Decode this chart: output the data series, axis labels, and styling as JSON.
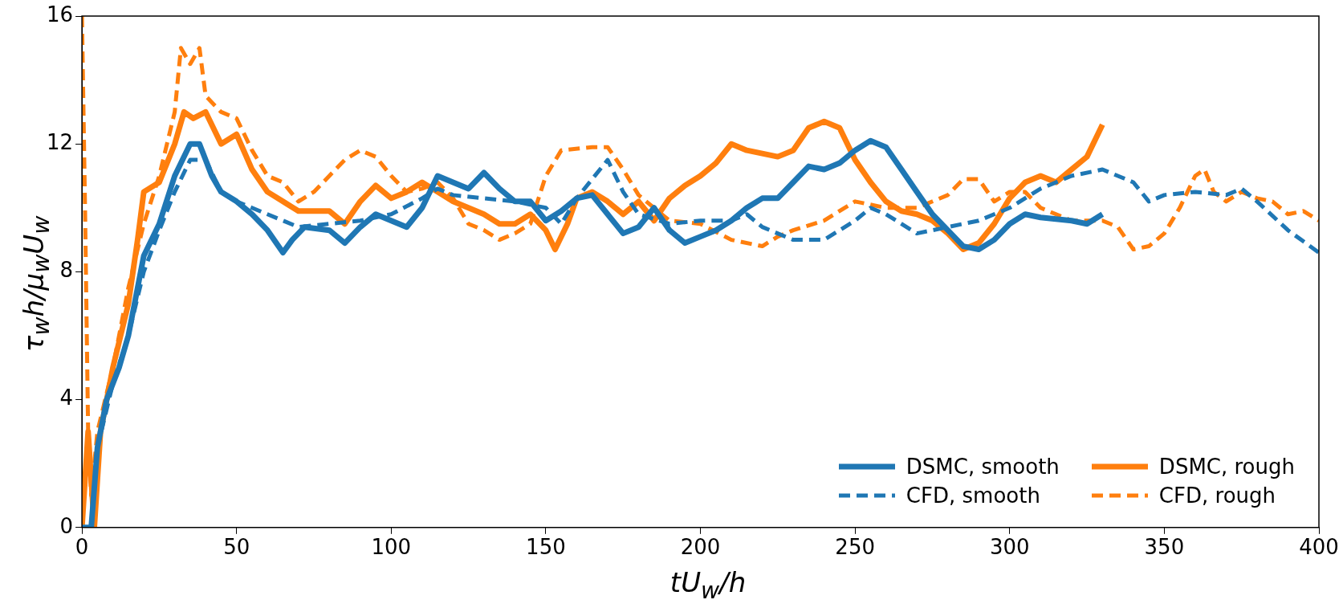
{
  "chart_data": {
    "type": "line",
    "xlabel": "tU$_{w}$/h",
    "ylabel": "τ$_{w}$h/μ$_{w}$U$_{w}$",
    "xlim": [
      0,
      400
    ],
    "xticks": [
      0,
      50,
      100,
      150,
      200,
      250,
      300,
      350,
      400
    ],
    "ylim": [
      0,
      16
    ],
    "yticks": [
      0,
      4,
      8,
      12,
      16
    ],
    "legend": "bottom right",
    "series": [
      {
        "name": "DSMC, smooth",
        "color": "#1f77b4",
        "line_style": "solid",
        "x": [
          0,
          3,
          5,
          8,
          12,
          15,
          18,
          20,
          25,
          30,
          35,
          38,
          42,
          45,
          50,
          55,
          60,
          65,
          68,
          72,
          80,
          85,
          90,
          95,
          100,
          105,
          110,
          115,
          120,
          125,
          130,
          135,
          140,
          145,
          150,
          155,
          160,
          165,
          170,
          175,
          180,
          185,
          190,
          195,
          200,
          205,
          210,
          215,
          220,
          225,
          230,
          235,
          240,
          245,
          250,
          255,
          260,
          265,
          270,
          275,
          280,
          285,
          290,
          295,
          300,
          305,
          310,
          320,
          325,
          330
        ],
        "values": [
          0,
          0,
          2.5,
          4,
          5,
          6,
          7.5,
          8.5,
          9.5,
          11,
          12,
          12,
          11,
          10.5,
          10.2,
          9.8,
          9.3,
          8.6,
          9,
          9.4,
          9.3,
          8.9,
          9.4,
          9.8,
          9.6,
          9.4,
          10,
          11,
          10.8,
          10.6,
          11.1,
          10.6,
          10.2,
          10.2,
          9.6,
          9.9,
          10.3,
          10.4,
          9.8,
          9.2,
          9.4,
          10,
          9.3,
          8.9,
          9.1,
          9.3,
          9.6,
          10,
          10.3,
          10.3,
          10.8,
          11.3,
          11.2,
          11.4,
          11.8,
          12.1,
          11.9,
          11.2,
          10.5,
          9.8,
          9.3,
          8.8,
          8.7,
          9,
          9.5,
          9.8,
          9.7,
          9.6,
          9.5,
          9.8
        ]
      },
      {
        "name": "CFD, smooth",
        "color": "#1f77b4",
        "line_style": "dashed",
        "x": [
          0,
          3,
          5,
          10,
          15,
          20,
          25,
          30,
          35,
          40,
          45,
          50,
          55,
          60,
          65,
          70,
          80,
          90,
          100,
          110,
          115,
          120,
          130,
          140,
          150,
          155,
          160,
          165,
          170,
          175,
          180,
          190,
          200,
          210,
          215,
          220,
          230,
          240,
          250,
          255,
          260,
          270,
          280,
          290,
          300,
          310,
          320,
          330,
          340,
          345,
          350,
          360,
          370,
          375,
          380,
          390,
          400
        ],
        "values": [
          0,
          0,
          2.5,
          4.5,
          6,
          8,
          9.3,
          10.5,
          11.5,
          11.5,
          10.5,
          10.2,
          10,
          9.8,
          9.6,
          9.4,
          9.5,
          9.6,
          9.8,
          10.3,
          10.6,
          10.4,
          10.3,
          10.2,
          10,
          9.5,
          10.3,
          10.9,
          11.5,
          10.5,
          9.8,
          9.5,
          9.6,
          9.6,
          9.8,
          9.4,
          9,
          9,
          9.6,
          10,
          9.8,
          9.2,
          9.4,
          9.6,
          10,
          10.6,
          11,
          11.2,
          10.8,
          10.2,
          10.4,
          10.5,
          10.4,
          10.6,
          10.2,
          9.3,
          8.6
        ]
      },
      {
        "name": "DSMC, rough",
        "color": "#ff7f0e",
        "line_style": "solid",
        "x": [
          0,
          2,
          4,
          6,
          10,
          15,
          18,
          20,
          25,
          30,
          33,
          36,
          40,
          45,
          50,
          55,
          60,
          65,
          70,
          80,
          85,
          90,
          95,
          100,
          105,
          110,
          115,
          120,
          125,
          130,
          135,
          140,
          145,
          150,
          153,
          157,
          160,
          165,
          170,
          175,
          180,
          185,
          190,
          195,
          200,
          205,
          210,
          215,
          220,
          225,
          230,
          235,
          240,
          245,
          250,
          255,
          260,
          265,
          270,
          275,
          280,
          285,
          290,
          295,
          300,
          305,
          310,
          315,
          320,
          325,
          330
        ],
        "values": [
          0,
          3,
          0,
          3,
          5,
          7,
          9,
          10.5,
          10.8,
          12,
          13,
          12.8,
          13,
          12,
          12.3,
          11.2,
          10.5,
          10.2,
          9.9,
          9.9,
          9.5,
          10.2,
          10.7,
          10.3,
          10.5,
          10.8,
          10.5,
          10.2,
          10,
          9.8,
          9.5,
          9.5,
          9.8,
          9.3,
          8.7,
          9.5,
          10.3,
          10.5,
          10.2,
          9.8,
          10.2,
          9.6,
          10.3,
          10.7,
          11,
          11.4,
          12,
          11.8,
          11.7,
          11.6,
          11.8,
          12.5,
          12.7,
          12.5,
          11.5,
          10.8,
          10.2,
          9.9,
          9.8,
          9.6,
          9.2,
          8.7,
          8.9,
          9.5,
          10.3,
          10.8,
          11,
          10.8,
          11.2,
          11.6,
          12.6
        ]
      },
      {
        "name": "CFD, rough",
        "color": "#ff7f0e",
        "line_style": "dashed",
        "x": [
          0,
          1,
          2,
          3,
          5,
          10,
          15,
          20,
          25,
          30,
          32,
          35,
          38,
          40,
          45,
          50,
          55,
          60,
          65,
          70,
          75,
          80,
          85,
          90,
          95,
          100,
          105,
          110,
          115,
          120,
          125,
          130,
          135,
          140,
          145,
          150,
          155,
          165,
          170,
          175,
          180,
          185,
          190,
          200,
          210,
          220,
          225,
          230,
          240,
          250,
          260,
          270,
          280,
          285,
          290,
          295,
          300,
          305,
          310,
          320,
          330,
          335,
          340,
          345,
          350,
          355,
          360,
          363,
          366,
          370,
          375,
          380,
          385,
          390,
          395,
          400
        ],
        "values": [
          16,
          10,
          3,
          1,
          3,
          5,
          7.5,
          9.5,
          11,
          13,
          15,
          14.5,
          15,
          13.5,
          13,
          12.8,
          11.8,
          11,
          10.8,
          10.2,
          10.5,
          11,
          11.5,
          11.8,
          11.6,
          11,
          10.5,
          10.6,
          10.8,
          10.3,
          9.5,
          9.3,
          9,
          9.2,
          9.5,
          11,
          11.8,
          11.9,
          11.9,
          11.2,
          10.4,
          10,
          9.6,
          9.5,
          9,
          8.8,
          9.1,
          9.3,
          9.6,
          10.2,
          10,
          10,
          10.4,
          10.9,
          10.9,
          10.2,
          10.5,
          10.5,
          10,
          9.6,
          9.6,
          9.4,
          8.7,
          8.8,
          9.2,
          10,
          11,
          11.2,
          10.5,
          10.2,
          10.5,
          10.3,
          10.2,
          9.8,
          9.9,
          9.6
        ]
      }
    ]
  }
}
